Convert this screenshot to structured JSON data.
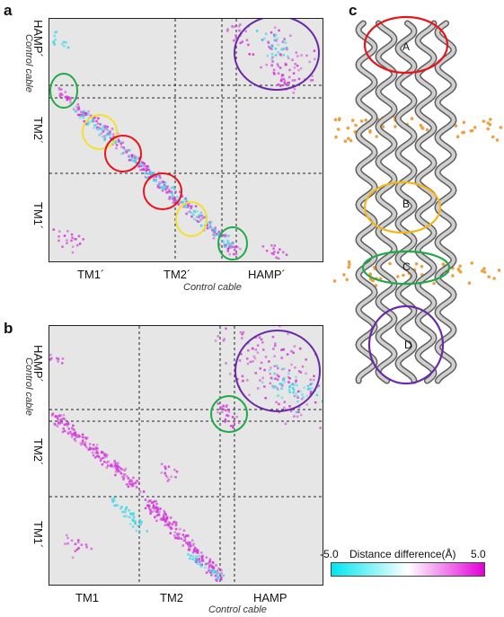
{
  "panels": {
    "a": {
      "letter": "a",
      "x_ticks": [
        "TM1´",
        "TM2´",
        "HAMP´"
      ],
      "y_ticks": [
        "HAMP´",
        "TM2´",
        "TM1´"
      ],
      "x_title": "Control cable",
      "y_title": "Control cable"
    },
    "b": {
      "letter": "b",
      "x_ticks": [
        "TM1",
        "TM2",
        "HAMP"
      ],
      "y_ticks": [
        "HAMP´",
        "TM2´",
        "TM1´"
      ],
      "x_title": "Control cable",
      "y_title": "Control cable"
    },
    "c": {
      "letter": "c",
      "regions": [
        "A",
        "B",
        "C",
        "D"
      ]
    }
  },
  "colorbar": {
    "min_label": "-5.0",
    "max_label": "5.0",
    "title": "Distance difference(Å)",
    "colors": [
      "#00e5f0",
      "#ffffff",
      "#e200d8"
    ]
  },
  "colors": {
    "cyan": "#3ad7e6",
    "magenta": "#d23ad8",
    "red": "#e8141c",
    "yellow": "#f2e030",
    "green": "#1faa4a",
    "purple": "#6a2aa6",
    "orange": "#f0a040"
  }
}
